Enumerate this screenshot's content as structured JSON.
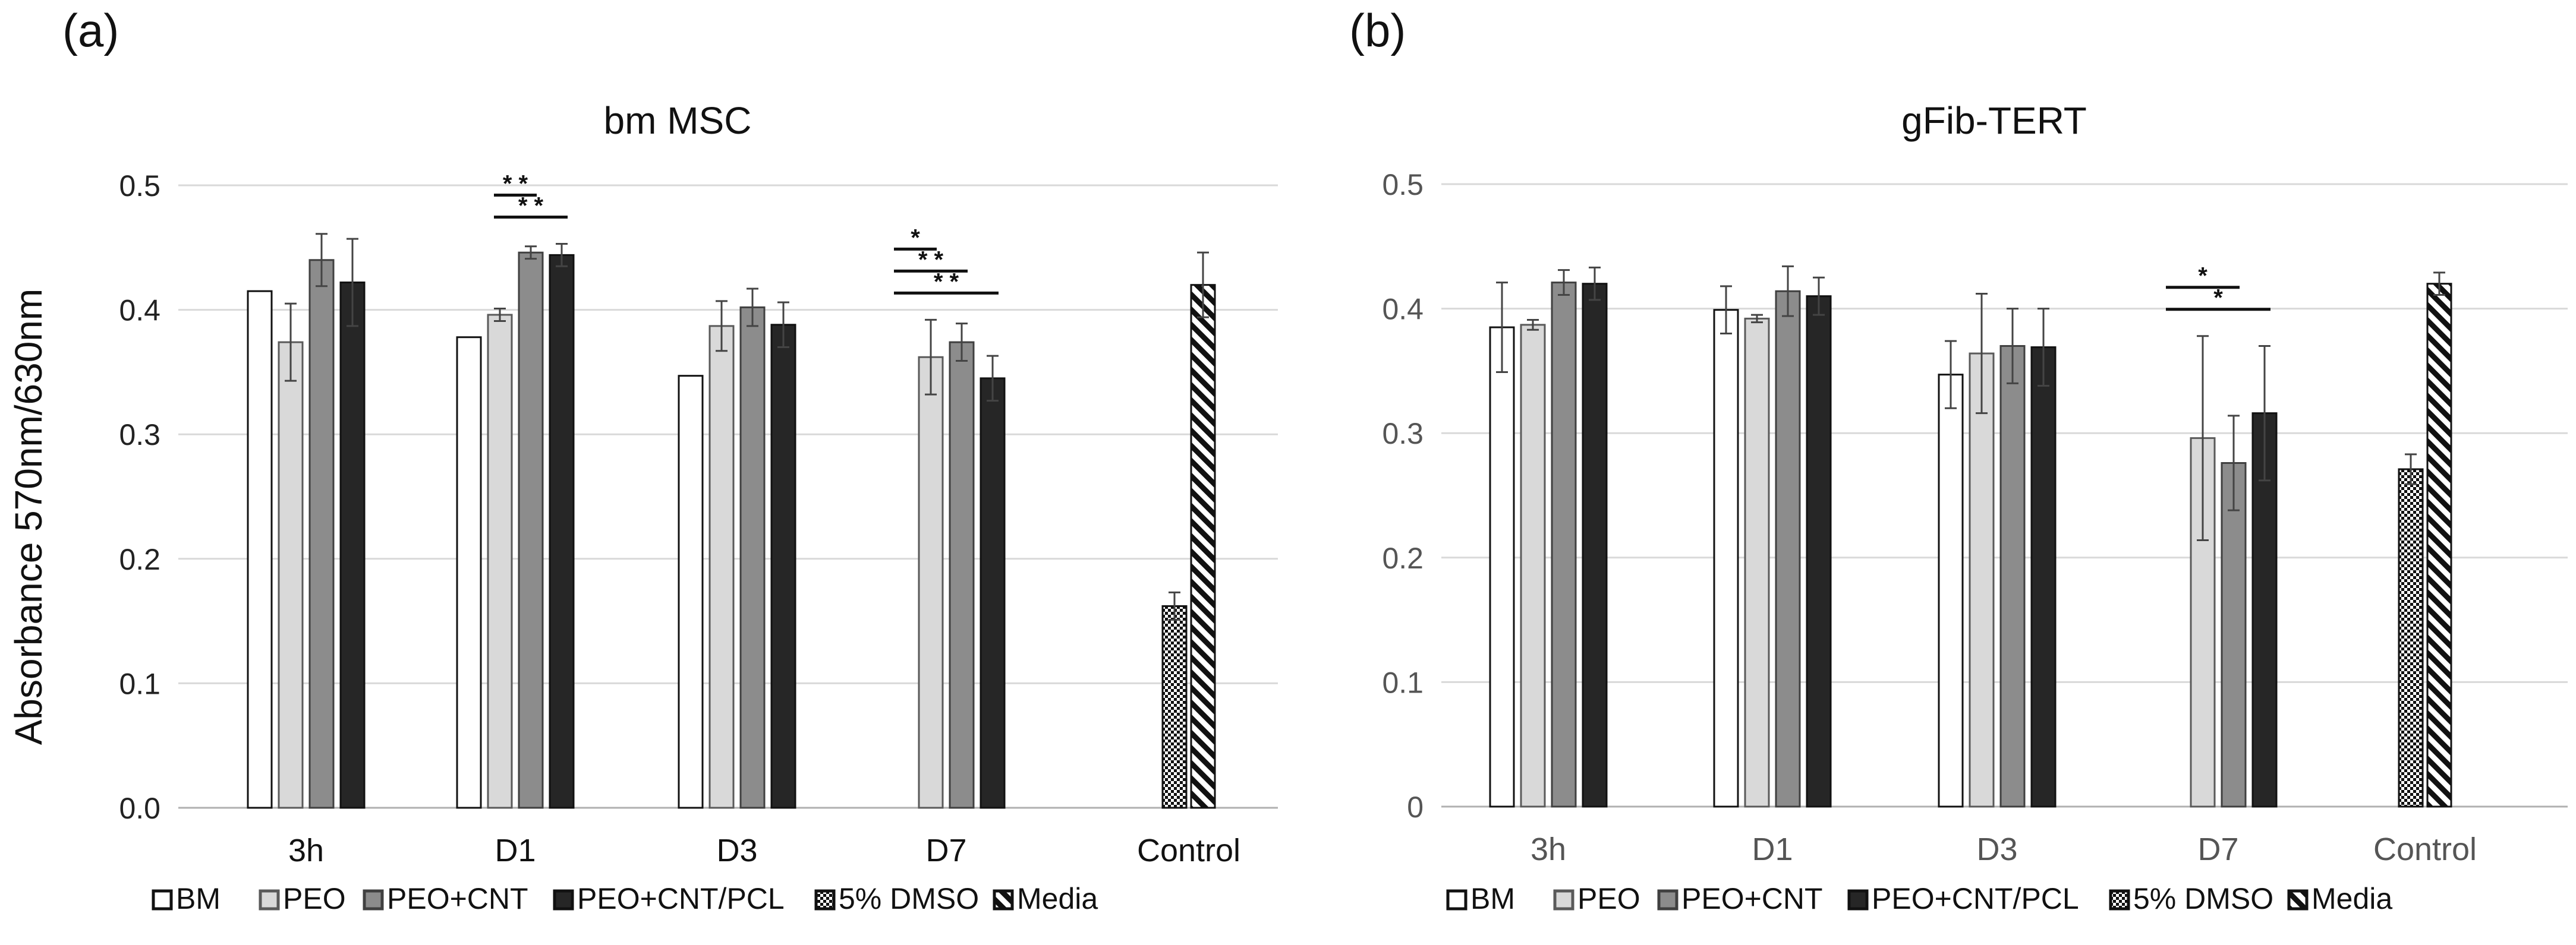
{
  "panel_labels": [
    "(a)",
    "(b)"
  ],
  "y_axis_label": "Absorbance 570nm/630nm",
  "chart_data": [
    {
      "type": "bar",
      "title": "bm MSC",
      "categories": [
        "3h",
        "D1",
        "D3",
        "D7",
        "Control"
      ],
      "yticks": [
        "0.0",
        "0.1",
        "0.2",
        "0.3",
        "0.4",
        "0.5"
      ],
      "ylim": [
        0,
        0.5
      ],
      "grid": true,
      "series": [
        {
          "name": "BM",
          "values": [
            0.415,
            0.378,
            0.347,
            null,
            null
          ],
          "errors": [
            0,
            0,
            0,
            null,
            null
          ]
        },
        {
          "name": "PEO",
          "values": [
            0.374,
            0.396,
            0.387,
            0.362,
            null
          ],
          "errors": [
            0.031,
            0.005,
            0.02,
            0.03,
            null
          ]
        },
        {
          "name": "PEO+CNT",
          "values": [
            0.44,
            0.446,
            0.402,
            0.374,
            null
          ],
          "errors": [
            0.021,
            0.005,
            0.015,
            0.015,
            null
          ]
        },
        {
          "name": "PEO+CNT/PCL",
          "values": [
            0.422,
            0.444,
            0.388,
            0.345,
            null
          ],
          "errors": [
            0.035,
            0.009,
            0.018,
            0.018,
            null
          ]
        },
        {
          "name": "5% DMSO",
          "values": [
            null,
            null,
            null,
            null,
            0.162
          ],
          "errors": [
            null,
            null,
            null,
            null,
            0.011
          ]
        },
        {
          "name": "Media",
          "values": [
            null,
            null,
            null,
            null,
            0.42
          ],
          "errors": [
            null,
            null,
            null,
            null,
            0.026
          ]
        }
      ],
      "significance": [
        {
          "label": "* *",
          "category": "D1",
          "from": "PEO",
          "to": "PEO+CNT/PCL",
          "level": 0
        },
        {
          "label": "* *",
          "category": "D1",
          "from": "PEO",
          "to": "PEO+CNT",
          "level": 1
        },
        {
          "label": "* *",
          "category": "D7",
          "from": "BM",
          "to": "PEO+CNT/PCL",
          "level": 0
        },
        {
          "label": "* *",
          "category": "D7",
          "from": "BM",
          "to": "PEO+CNT",
          "level": 1
        },
        {
          "label": "*",
          "category": "D7",
          "from": "BM",
          "to": "PEO",
          "level": 2
        }
      ],
      "legend": [
        "BM",
        "PEO",
        "PEO+CNT",
        "PEO+CNT/PCL",
        "5% DMSO",
        "Media"
      ],
      "legend_position": "bottom"
    },
    {
      "type": "bar",
      "title": "gFib-TERT",
      "categories": [
        "3h",
        "D1",
        "D3",
        "D7",
        "Control"
      ],
      "yticks": [
        "0",
        "0.1",
        "0.2",
        "0.3",
        "0.4",
        "0.5"
      ],
      "ylim": [
        0,
        0.5
      ],
      "grid": true,
      "series": [
        {
          "name": "BM",
          "values": [
            0.385,
            0.399,
            0.347,
            null,
            null
          ],
          "errors": [
            0.036,
            0.019,
            0.027,
            null,
            null
          ]
        },
        {
          "name": "PEO",
          "values": [
            0.387,
            0.392,
            0.364,
            0.296,
            null
          ],
          "errors": [
            0.004,
            0.003,
            0.048,
            0.082,
            null
          ]
        },
        {
          "name": "PEO+CNT",
          "values": [
            0.421,
            0.414,
            0.37,
            0.276,
            null
          ],
          "errors": [
            0.01,
            0.02,
            0.03,
            0.038,
            null
          ]
        },
        {
          "name": "PEO+CNT/PCL",
          "values": [
            0.42,
            0.41,
            0.369,
            0.316,
            null
          ],
          "errors": [
            0.013,
            0.015,
            0.031,
            0.054,
            null
          ]
        },
        {
          "name": "5% DMSO",
          "values": [
            null,
            null,
            null,
            null,
            0.271
          ],
          "errors": [
            null,
            null,
            null,
            null,
            0.012
          ]
        },
        {
          "name": "Media",
          "values": [
            null,
            null,
            null,
            null,
            0.42
          ],
          "errors": [
            null,
            null,
            null,
            null,
            0.009
          ]
        }
      ],
      "significance": [
        {
          "label": "*",
          "category": "D7",
          "from": "BM",
          "to": "PEO+CNT/PCL",
          "level": 0
        },
        {
          "label": "*",
          "category": "D7",
          "from": "BM",
          "to": "PEO+CNT",
          "level": 1
        }
      ],
      "legend": [
        "BM",
        "PEO",
        "PEO+CNT",
        "PEO+CNT/PCL",
        "5% DMSO",
        "Media"
      ],
      "legend_position": "bottom"
    }
  ]
}
